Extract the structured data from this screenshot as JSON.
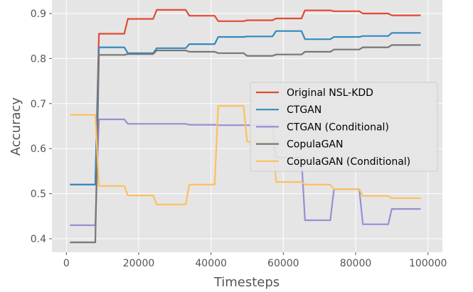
{
  "chart_data": {
    "type": "line",
    "title": "",
    "xlabel": "Timesteps",
    "ylabel": "Accuracy",
    "xlim": [
      -4000,
      104000
    ],
    "ylim": [
      0.37,
      0.93
    ],
    "x_ticks": [
      0,
      20000,
      40000,
      60000,
      80000,
      100000
    ],
    "x_tick_labels": [
      "0",
      "20000",
      "40000",
      "60000",
      "80000",
      "100000"
    ],
    "y_ticks": [
      0.4,
      0.5,
      0.6,
      0.7,
      0.8,
      0.9
    ],
    "y_tick_labels": [
      "0.4",
      "0.5",
      "0.6",
      "0.7",
      "0.8",
      "0.9"
    ],
    "grid": true,
    "background": "#E5E5E5",
    "legend_position": "center-right",
    "series": [
      {
        "name": "Original NSL-KDD",
        "color": "#E24A33",
        "points": [
          [
            1000,
            0.52
          ],
          [
            8000,
            0.52
          ],
          [
            9000,
            0.855
          ],
          [
            16000,
            0.855
          ],
          [
            17000,
            0.888
          ],
          [
            24000,
            0.888
          ],
          [
            25000,
            0.908
          ],
          [
            33000,
            0.908
          ],
          [
            34000,
            0.895
          ],
          [
            41000,
            0.895
          ],
          [
            42000,
            0.883
          ],
          [
            49000,
            0.883
          ],
          [
            50000,
            0.885
          ],
          [
            57000,
            0.885
          ],
          [
            58000,
            0.889
          ],
          [
            65000,
            0.889
          ],
          [
            66000,
            0.907
          ],
          [
            73000,
            0.907
          ],
          [
            74000,
            0.905
          ],
          [
            81000,
            0.905
          ],
          [
            82000,
            0.9
          ],
          [
            89000,
            0.9
          ],
          [
            90000,
            0.896
          ],
          [
            98000,
            0.896
          ]
        ]
      },
      {
        "name": "CTGAN",
        "color": "#348ABD",
        "points": [
          [
            1000,
            0.52
          ],
          [
            8000,
            0.52
          ],
          [
            9000,
            0.825
          ],
          [
            16000,
            0.825
          ],
          [
            17000,
            0.812
          ],
          [
            24000,
            0.812
          ],
          [
            25000,
            0.823
          ],
          [
            33000,
            0.823
          ],
          [
            34000,
            0.832
          ],
          [
            41000,
            0.832
          ],
          [
            42000,
            0.848
          ],
          [
            49000,
            0.848
          ],
          [
            50000,
            0.849
          ],
          [
            57000,
            0.849
          ],
          [
            58000,
            0.861
          ],
          [
            65000,
            0.861
          ],
          [
            66000,
            0.843
          ],
          [
            73000,
            0.843
          ],
          [
            74000,
            0.848
          ],
          [
            81000,
            0.848
          ],
          [
            82000,
            0.85
          ],
          [
            89000,
            0.85
          ],
          [
            90000,
            0.857
          ],
          [
            98000,
            0.857
          ]
        ]
      },
      {
        "name": "CTGAN (Conditional)",
        "color": "#988ED5",
        "points": [
          [
            1000,
            0.43
          ],
          [
            8000,
            0.43
          ],
          [
            9000,
            0.665
          ],
          [
            16000,
            0.665
          ],
          [
            17000,
            0.655
          ],
          [
            24000,
            0.655
          ],
          [
            25000,
            0.655
          ],
          [
            33000,
            0.655
          ],
          [
            34000,
            0.653
          ],
          [
            41000,
            0.653
          ],
          [
            42000,
            0.652
          ],
          [
            49000,
            0.652
          ],
          [
            50000,
            0.652
          ],
          [
            57000,
            0.652
          ],
          [
            58000,
            0.58
          ],
          [
            65000,
            0.58
          ],
          [
            66000,
            0.441
          ],
          [
            73000,
            0.441
          ],
          [
            74000,
            0.51
          ],
          [
            81000,
            0.51
          ],
          [
            82000,
            0.432
          ],
          [
            89000,
            0.432
          ],
          [
            90000,
            0.466
          ],
          [
            98000,
            0.466
          ]
        ]
      },
      {
        "name": "CopulaGAN",
        "color": "#777777",
        "points": [
          [
            1000,
            0.392
          ],
          [
            8000,
            0.392
          ],
          [
            9000,
            0.808
          ],
          [
            16000,
            0.808
          ],
          [
            17000,
            0.81
          ],
          [
            24000,
            0.81
          ],
          [
            25000,
            0.818
          ],
          [
            33000,
            0.818
          ],
          [
            34000,
            0.815
          ],
          [
            41000,
            0.815
          ],
          [
            42000,
            0.812
          ],
          [
            49000,
            0.812
          ],
          [
            50000,
            0.806
          ],
          [
            57000,
            0.806
          ],
          [
            58000,
            0.809
          ],
          [
            65000,
            0.809
          ],
          [
            66000,
            0.815
          ],
          [
            73000,
            0.815
          ],
          [
            74000,
            0.82
          ],
          [
            81000,
            0.82
          ],
          [
            82000,
            0.825
          ],
          [
            89000,
            0.825
          ],
          [
            90000,
            0.83
          ],
          [
            98000,
            0.83
          ]
        ]
      },
      {
        "name": "CopulaGAN (Conditional)",
        "color": "#FBC15E",
        "points": [
          [
            1000,
            0.675
          ],
          [
            8000,
            0.675
          ],
          [
            9000,
            0.517
          ],
          [
            16000,
            0.517
          ],
          [
            17000,
            0.496
          ],
          [
            24000,
            0.496
          ],
          [
            25000,
            0.476
          ],
          [
            33000,
            0.476
          ],
          [
            34000,
            0.52
          ],
          [
            41000,
            0.52
          ],
          [
            42000,
            0.695
          ],
          [
            49000,
            0.695
          ],
          [
            50000,
            0.615
          ],
          [
            57000,
            0.615
          ],
          [
            58000,
            0.526
          ],
          [
            65000,
            0.526
          ],
          [
            66000,
            0.52
          ],
          [
            73000,
            0.52
          ],
          [
            74000,
            0.51
          ],
          [
            81000,
            0.51
          ],
          [
            82000,
            0.495
          ],
          [
            89000,
            0.495
          ],
          [
            90000,
            0.49
          ],
          [
            98000,
            0.49
          ]
        ]
      }
    ]
  }
}
